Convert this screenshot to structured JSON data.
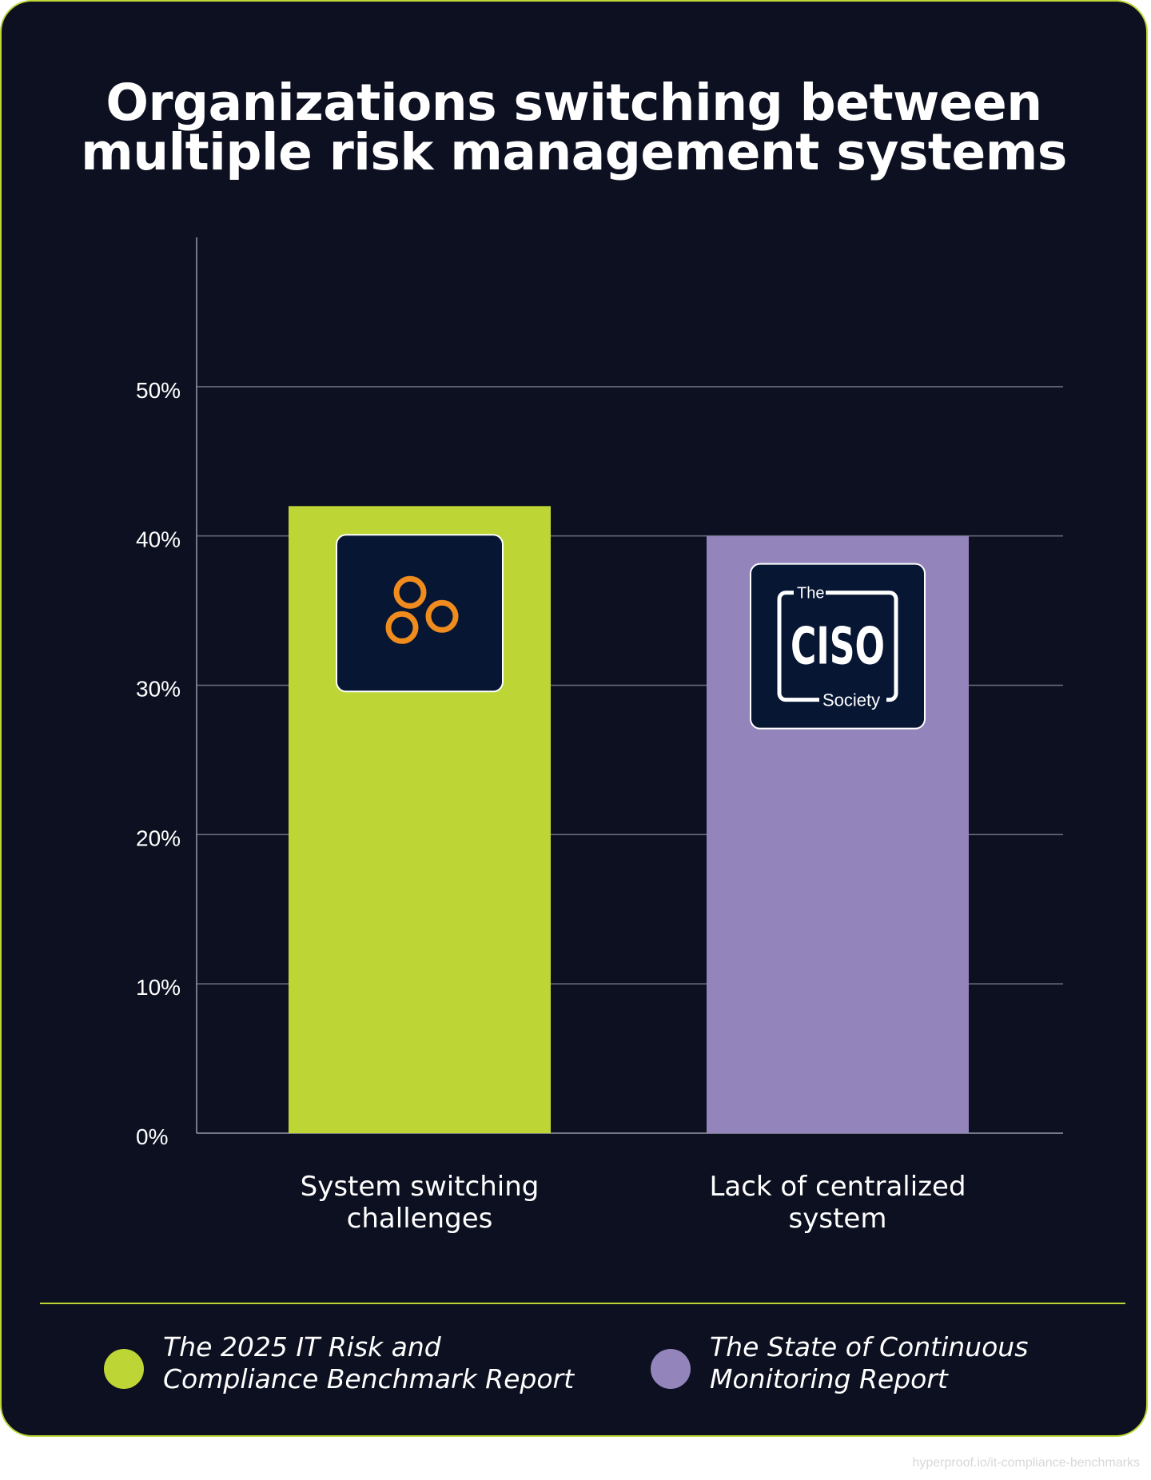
{
  "title": {
    "line1": "Organizations switching between",
    "line2": "multiple risk management systems"
  },
  "chart_data": {
    "type": "bar",
    "title": "Organizations switching between multiple risk management systems",
    "categories": [
      "System switching challenges",
      "Lack of centralized system"
    ],
    "category_lines": [
      [
        "System switching",
        "challenges"
      ],
      [
        "Lack of centralized",
        "system"
      ]
    ],
    "values": [
      42,
      40
    ],
    "value_unit": "%",
    "colors": [
      "#bdd635",
      "#9385bc"
    ],
    "ylim": [
      0,
      60
    ],
    "yticks": [
      0,
      10,
      20,
      30,
      40,
      50
    ],
    "ytick_labels": [
      "0%",
      "10%",
      "20%",
      "30%",
      "40%",
      "50%"
    ],
    "grid": true,
    "xlabel": "",
    "ylabel": "",
    "bar_logos": [
      "orange-rings-logo",
      "ciso-society-logo"
    ],
    "logo_text": {
      "ciso_the": "The",
      "ciso_main": "CISO",
      "ciso_society": "Society"
    }
  },
  "legend": {
    "placement": "bottom",
    "items": [
      {
        "label": "The 2025 IT Risk and Compliance Benchmark Report",
        "color": "#bdd635"
      },
      {
        "label": "The State of Continuous Monitoring Report",
        "color": "#9385bc"
      }
    ]
  },
  "colors": {
    "background": "#0d1020",
    "accent": "#bdd635",
    "secondary": "#9385bc",
    "logo_bg": "#071633",
    "logo_orange": "#f08c1e"
  },
  "footer": {
    "url": "hyperproof.io/it-compliance-benchmarks"
  }
}
